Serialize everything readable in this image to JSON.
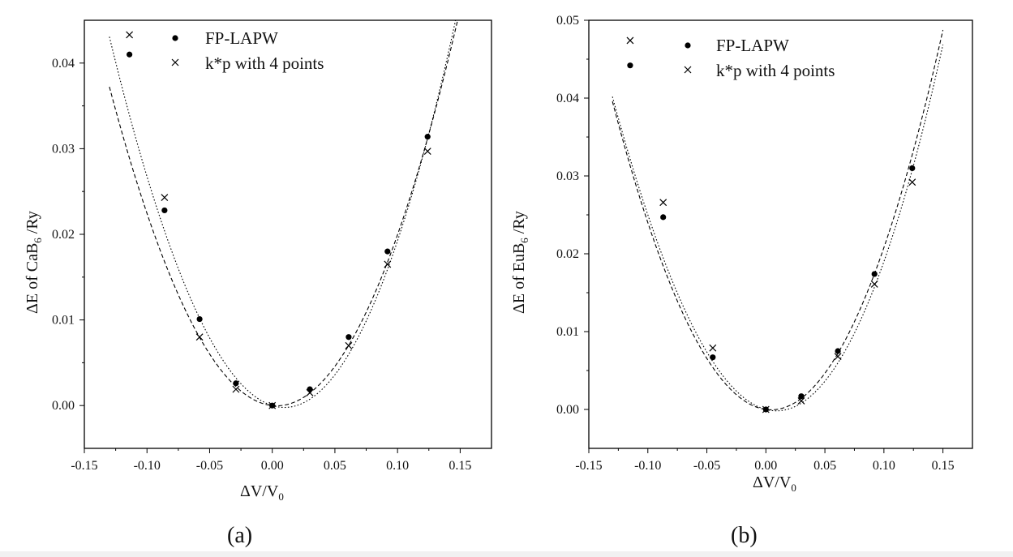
{
  "chart_data": [
    {
      "type": "scatter",
      "panel_label": "(a)",
      "xlabel": {
        "prefix": "ΔV/V",
        "sub": "0"
      },
      "ylabel": {
        "prefix": "ΔE of CaB",
        "sub": "6",
        "suffix": " /Ry"
      },
      "xlim": [
        -0.15,
        0.175
      ],
      "ylim": [
        -0.005,
        0.045
      ],
      "xticks": [
        -0.15,
        -0.1,
        -0.05,
        0.0,
        0.05,
        0.1,
        0.15
      ],
      "xtick_labels": [
        "-0.15",
        "-0.10",
        "-0.05",
        "0.00",
        "0.05",
        "0.10",
        "0.15"
      ],
      "yticks": [
        0.0,
        0.01,
        0.02,
        0.03,
        0.04
      ],
      "ytick_labels": [
        "0.00",
        "0.01",
        "0.02",
        "0.03",
        "0.04"
      ],
      "legend_position": "top-center",
      "series": [
        {
          "name": "FP-LAPW",
          "marker": "dot",
          "x": [
            -0.114,
            -0.086,
            -0.058,
            -0.029,
            0.0,
            0.03,
            0.061,
            0.092,
            0.124
          ],
          "y": [
            0.041,
            0.0228,
            0.0101,
            0.0026,
            0.0,
            0.0019,
            0.008,
            0.018,
            0.0314
          ]
        },
        {
          "name": "k*p with 4 points",
          "marker": "cross",
          "x": [
            -0.114,
            -0.086,
            -0.058,
            -0.029,
            0.0,
            0.03,
            0.061,
            0.092,
            0.124
          ],
          "y": [
            0.0433,
            0.0243,
            0.008,
            0.0019,
            0.0,
            0.0015,
            0.007,
            0.0165,
            0.0297
          ]
        }
      ],
      "fits": [
        {
          "style": "dash",
          "coeffs": [
            0.0,
            -0.015,
            2.12,
            0.25
          ]
        },
        {
          "style": "dot",
          "coeffs": [
            0.0,
            -0.045,
            2.3,
            0.75
          ]
        }
      ],
      "fit_x_range": [
        -0.13,
        0.15
      ]
    },
    {
      "type": "scatter",
      "panel_label": "(b)",
      "xlabel": {
        "prefix": "ΔV/V",
        "sub": "0"
      },
      "ylabel": {
        "prefix": "ΔE of EuB",
        "sub": "6",
        "suffix": " /Ry"
      },
      "xlim": [
        -0.15,
        0.175
      ],
      "ylim": [
        -0.005,
        0.05
      ],
      "xticks": [
        -0.15,
        -0.1,
        -0.05,
        0.0,
        0.05,
        0.1,
        0.15
      ],
      "xtick_labels": [
        "-0.15",
        "-0.10",
        "-0.05",
        "0.00",
        "0.05",
        "0.10",
        "0.15"
      ],
      "yticks": [
        0.0,
        0.01,
        0.02,
        0.03,
        0.04,
        0.05
      ],
      "ytick_labels": [
        "0.00",
        "0.01",
        "0.02",
        "0.03",
        "0.04",
        "0.05"
      ],
      "legend_position": "top-center",
      "series": [
        {
          "name": "FP-LAPW",
          "marker": "dot",
          "x": [
            -0.115,
            -0.087,
            -0.045,
            0.0,
            0.03,
            0.061,
            0.092,
            0.124
          ],
          "y": [
            0.0442,
            0.0247,
            0.0067,
            0.0,
            0.0017,
            0.0075,
            0.0174,
            0.031
          ]
        },
        {
          "name": "k*p with 4 points",
          "marker": "cross",
          "x": [
            -0.115,
            -0.087,
            -0.045,
            0.0,
            0.03,
            0.061,
            0.092,
            0.124
          ],
          "y": [
            0.0474,
            0.0266,
            0.0079,
            0.0,
            0.0011,
            0.0068,
            0.0161,
            0.0292
          ]
        }
      ],
      "fits": [
        {
          "style": "dash",
          "coeffs": [
            0.0,
            -0.02,
            2.24,
            0.4
          ]
        },
        {
          "style": "dot",
          "coeffs": [
            0.0,
            -0.04,
            2.2,
            1.0
          ]
        }
      ],
      "fit_x_range": [
        -0.13,
        0.15
      ]
    }
  ]
}
